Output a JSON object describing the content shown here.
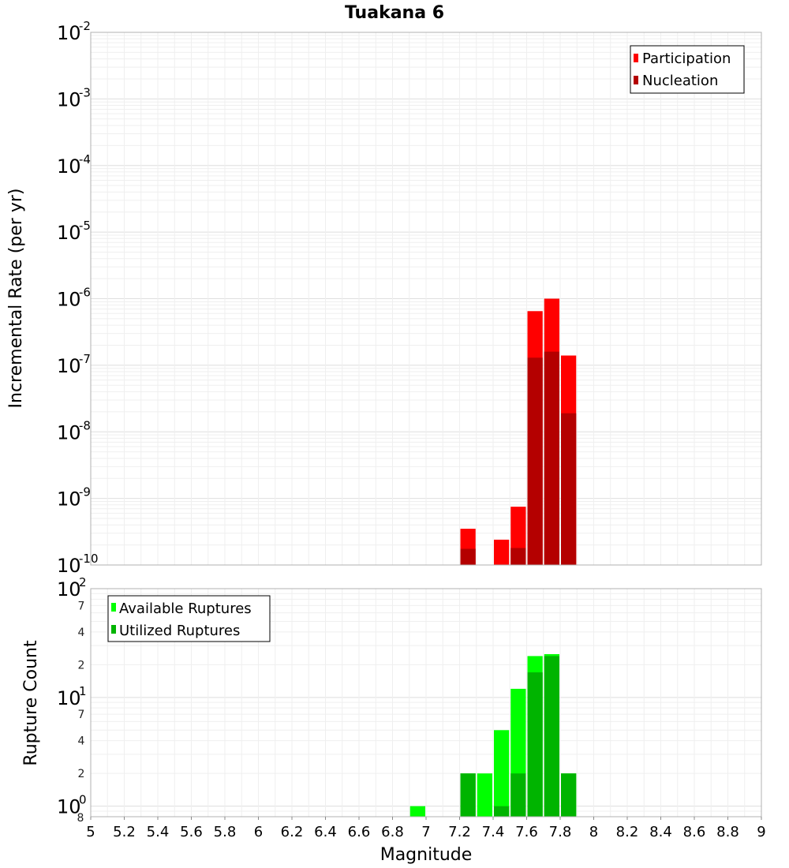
{
  "chart_data": [
    {
      "type": "bar",
      "title": "Tuakana 6",
      "xlabel": "",
      "ylabel": "Incremental Rate (per yr)",
      "yscale": "log",
      "xlim": [
        5,
        9
      ],
      "ylim": [
        1e-10,
        0.01
      ],
      "y_ticks": [
        {
          "base": "10",
          "exp": "-10"
        },
        {
          "base": "10",
          "exp": "-9"
        },
        {
          "base": "10",
          "exp": "-8"
        },
        {
          "base": "10",
          "exp": "-7"
        },
        {
          "base": "10",
          "exp": "-6"
        },
        {
          "base": "10",
          "exp": "-5"
        },
        {
          "base": "10",
          "exp": "-4"
        },
        {
          "base": "10",
          "exp": "-3"
        },
        {
          "base": "10",
          "exp": "-2"
        }
      ],
      "grid": true,
      "legend_position": "top-right",
      "legend": [
        "Participation",
        "Nucleation"
      ],
      "series": [
        {
          "name": "Participation",
          "color": "#ff0000",
          "x": [
            7.25,
            7.45,
            7.55,
            7.65,
            7.75,
            7.85
          ],
          "values": [
            3.5e-10,
            2.4e-10,
            7.5e-10,
            6.5e-07,
            1e-06,
            1.4e-07
          ]
        },
        {
          "name": "Nucleation",
          "color": "#b40000",
          "x": [
            7.25,
            7.55,
            7.65,
            7.75,
            7.85
          ],
          "values": [
            1.75e-10,
            1.8e-10,
            1.3e-07,
            1.6e-07,
            1.9e-08
          ]
        }
      ]
    },
    {
      "type": "bar",
      "title": "",
      "xlabel": "Magnitude",
      "ylabel": "Rupture Count",
      "yscale": "log",
      "xlim": [
        5,
        9
      ],
      "ylim": [
        0.8,
        100
      ],
      "x_ticks": [
        "5",
        "5.2",
        "5.4",
        "5.6",
        "5.8",
        "6",
        "6.2",
        "6.4",
        "6.6",
        "6.8",
        "7",
        "7.2",
        "7.4",
        "7.6",
        "7.8",
        "8",
        "8.2",
        "8.4",
        "8.6",
        "8.8",
        "9"
      ],
      "y_major_ticks": [
        {
          "base": "10",
          "exp": "0"
        },
        {
          "base": "10",
          "exp": "1"
        },
        {
          "base": "10",
          "exp": "2"
        }
      ],
      "y_minor_ticks": [
        {
          "value": 2,
          "label": "2"
        },
        {
          "value": 4,
          "label": "4"
        },
        {
          "value": 7,
          "label": "7"
        },
        {
          "value": 20,
          "label": "2"
        },
        {
          "value": 40,
          "label": "4"
        },
        {
          "value": 70,
          "label": "7"
        }
      ],
      "y_bottom_label": "8",
      "grid": true,
      "legend_position": "top-left",
      "legend": [
        "Available Ruptures",
        "Utilized Ruptures"
      ],
      "series": [
        {
          "name": "Available Ruptures",
          "color": "#00ff00",
          "x": [
            6.95,
            7.25,
            7.35,
            7.45,
            7.55,
            7.65,
            7.75,
            7.85
          ],
          "values": [
            1,
            2,
            2,
            5,
            12,
            24,
            25,
            2
          ]
        },
        {
          "name": "Utilized Ruptures",
          "color": "#00b400",
          "x": [
            7.25,
            7.45,
            7.55,
            7.65,
            7.75,
            7.85
          ],
          "values": [
            2,
            1,
            2,
            17,
            24,
            2
          ]
        }
      ]
    }
  ]
}
